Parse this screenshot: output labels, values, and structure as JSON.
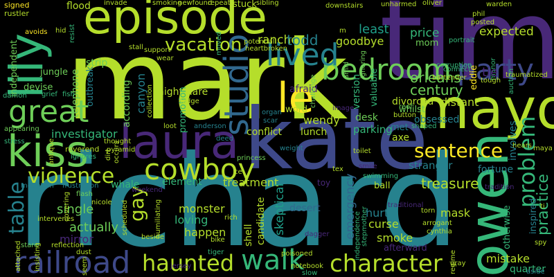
{
  "palette": [
    "#fde725",
    "#b5de2b",
    "#6ece58",
    "#35b779",
    "#1f9e89",
    "#26828e",
    "#31688e",
    "#3e4989",
    "#482878",
    "#440154"
  ],
  "words": [
    {
      "text": "mark",
      "c": "#b5de2b"
    },
    {
      "text": "tim",
      "c": "#482878"
    },
    {
      "text": "richard",
      "c": "#26828e"
    },
    {
      "text": "kate",
      "c": "#3e4989"
    },
    {
      "text": "episode",
      "c": "#b5de2b"
    },
    {
      "text": "mayor",
      "c": "#b5de2b"
    },
    {
      "text": "laura",
      "c": "#482878"
    },
    {
      "text": "owen",
      "c": "#35b779"
    },
    {
      "text": "lily",
      "c": "#35b779"
    },
    {
      "text": "kiss",
      "c": "#6ece58"
    },
    {
      "text": "great",
      "c": "#6ece58"
    },
    {
      "text": "cowboy",
      "c": "#b5de2b"
    },
    {
      "text": "studio",
      "c": "#31688e"
    },
    {
      "text": "railroad",
      "c": "#3e4989"
    },
    {
      "text": "bedroom",
      "c": "#6ece58"
    },
    {
      "text": "party",
      "c": "#3e4989"
    },
    {
      "text": "lived",
      "c": "#26828e"
    },
    {
      "text": "le",
      "c": "#fde725"
    },
    {
      "text": "walk",
      "c": "#35b779"
    },
    {
      "text": "haunted",
      "c": "#b5de2b"
    },
    {
      "text": "character",
      "c": "#b5de2b"
    },
    {
      "text": "violence",
      "c": "#b5de2b"
    },
    {
      "text": "table",
      "c": "#26828e"
    },
    {
      "text": "sentence",
      "c": "#fde725"
    },
    {
      "text": "problem",
      "c": "#35b779"
    },
    {
      "text": "vacation",
      "c": "#b5de2b"
    },
    {
      "text": "gay",
      "c": "#b5de2b"
    },
    {
      "text": "treasure",
      "c": "#b5de2b"
    },
    {
      "text": "practice",
      "c": "#35b779"
    },
    {
      "text": "mistake",
      "c": "#b5de2b"
    },
    {
      "text": "rancher",
      "c": "#b5de2b"
    },
    {
      "text": "least",
      "c": "#1f9e89"
    },
    {
      "text": "expected",
      "c": "#b5de2b"
    },
    {
      "text": "price",
      "c": "#35b779"
    },
    {
      "text": "todd",
      "c": "#26828e"
    },
    {
      "text": "goodbye",
      "c": "#b5de2b"
    },
    {
      "text": "orleans",
      "c": "#6ece58"
    },
    {
      "text": "century",
      "c": "#6ece58"
    },
    {
      "text": "mom",
      "c": "#6ece58"
    },
    {
      "text": "investigator",
      "c": "#35b779"
    },
    {
      "text": "wendy",
      "c": "#b5de2b"
    },
    {
      "text": "conflict",
      "c": "#b5de2b"
    },
    {
      "text": "lunch",
      "c": "#b5de2b"
    },
    {
      "text": "parking",
      "c": "#35b779"
    },
    {
      "text": "met",
      "c": "#26828e"
    },
    {
      "text": "obsessed",
      "c": "#26828e"
    },
    {
      "text": "axe",
      "c": "#b5de2b"
    },
    {
      "text": "stranger",
      "c": "#26828e"
    },
    {
      "text": "fortune",
      "c": "#26828e"
    },
    {
      "text": "element",
      "c": "#35b779"
    },
    {
      "text": "whale",
      "c": "#35b779"
    },
    {
      "text": "treatment",
      "c": "#b5de2b"
    },
    {
      "text": "ball",
      "c": "#b5de2b"
    },
    {
      "text": "single",
      "c": "#6ece58"
    },
    {
      "text": "actually",
      "c": "#6ece58"
    },
    {
      "text": "mirror",
      "c": "#482878"
    },
    {
      "text": "monster",
      "c": "#b5de2b"
    },
    {
      "text": "loving",
      "c": "#35b779"
    },
    {
      "text": "happen",
      "c": "#b5de2b"
    },
    {
      "text": "smoke",
      "c": "#b5de2b"
    },
    {
      "text": "hurt",
      "c": "#26828e"
    },
    {
      "text": "curse",
      "c": "#b5de2b"
    },
    {
      "text": "mask",
      "c": "#b5de2b"
    },
    {
      "text": "desert",
      "c": "#31688e"
    },
    {
      "text": "emergency",
      "c": "#31688e"
    },
    {
      "text": "skeptical",
      "c": "#1f9e89"
    },
    {
      "text": "candidate",
      "c": "#b5de2b"
    },
    {
      "text": "shell",
      "c": "#b5de2b"
    },
    {
      "text": "afterward",
      "c": "#482878"
    },
    {
      "text": "quarter",
      "c": "#35b779"
    },
    {
      "text": "inspired",
      "c": "#26828e"
    },
    {
      "text": "involves",
      "c": "#26828e"
    },
    {
      "text": "otherwise",
      "c": "#35b779"
    },
    {
      "text": "nightmare",
      "c": "#b5de2b"
    },
    {
      "text": "canyon",
      "c": "#26828e"
    },
    {
      "text": "according",
      "c": "#6ece58"
    },
    {
      "text": "strip",
      "c": "#6ece58"
    },
    {
      "text": "outbreak",
      "c": "#26828e"
    },
    {
      "text": "jungle",
      "c": "#6ece58"
    },
    {
      "text": "telephone",
      "c": "#6ece58"
    },
    {
      "text": "independent",
      "c": "#6ece58"
    },
    {
      "text": "devise",
      "c": "#6ece58"
    },
    {
      "text": "afraid",
      "c": "#482878"
    },
    {
      "text": "word",
      "c": "#b5de2b"
    },
    {
      "text": "desk",
      "c": "#6ece58"
    },
    {
      "text": "distant",
      "c": "#b5de2b"
    },
    {
      "text": "divorced",
      "c": "#b5de2b"
    },
    {
      "text": "whilst",
      "c": "#6ece58"
    },
    {
      "text": "valuable",
      "c": "#35b779"
    },
    {
      "text": "version",
      "c": "#35b779"
    },
    {
      "text": "promotion",
      "c": "#35b779"
    },
    {
      "text": "flood",
      "c": "#b5de2b"
    },
    {
      "text": "stuck",
      "c": "#b5de2b"
    },
    {
      "text": "signed",
      "c": "#fde725"
    },
    {
      "text": "rustler",
      "c": "#b5de2b"
    },
    {
      "text": "avoids",
      "c": "#fde725"
    },
    {
      "text": "invade",
      "c": "#b5de2b"
    },
    {
      "text": "smoking",
      "c": "#b5de2b"
    },
    {
      "text": "newfound",
      "c": "#b5de2b"
    },
    {
      "text": "repeat",
      "c": "#b5de2b"
    },
    {
      "text": "sibling",
      "c": "#b5de2b"
    },
    {
      "text": "downstairs",
      "c": "#b5de2b"
    },
    {
      "text": "unharmed",
      "c": "#b5de2b"
    },
    {
      "text": "oliver",
      "c": "#b5de2b"
    },
    {
      "text": "warden",
      "c": "#b5de2b"
    },
    {
      "text": "phil",
      "c": "#b5de2b"
    },
    {
      "text": "posted",
      "c": "#b5de2b"
    },
    {
      "text": "portrait",
      "c": "#35b779"
    },
    {
      "text": "corruption",
      "c": "#35b779"
    },
    {
      "text": "manor",
      "c": "#35b779"
    },
    {
      "text": "tough",
      "c": "#b5de2b"
    },
    {
      "text": "auction",
      "c": "#35b779"
    },
    {
      "text": "traumatized",
      "c": "#b5de2b"
    },
    {
      "text": "heartbroken",
      "c": "#b5de2b"
    },
    {
      "text": "potential",
      "c": "#b5de2b"
    },
    {
      "text": "moved",
      "c": "#35b779"
    },
    {
      "text": "support",
      "c": "#b5de2b"
    },
    {
      "text": "wear",
      "c": "#b5de2b"
    },
    {
      "text": "stall",
      "c": "#b5de2b"
    },
    {
      "text": "resist",
      "c": "#35b779"
    },
    {
      "text": "hid",
      "c": "#b5de2b"
    },
    {
      "text": "damon",
      "c": "#35b779"
    },
    {
      "text": "grief",
      "c": "#35b779"
    },
    {
      "text": "fish",
      "c": "#35b779"
    },
    {
      "text": "lodge",
      "c": "#b5de2b"
    },
    {
      "text": "organ",
      "c": "#26828e"
    },
    {
      "text": "scar",
      "c": "#26828e"
    },
    {
      "text": "loot",
      "c": "#b5de2b"
    },
    {
      "text": "anderson",
      "c": "#26828e"
    },
    {
      "text": "deed",
      "c": "#26828e"
    },
    {
      "text": "image",
      "c": "#482878"
    },
    {
      "text": "challenge",
      "c": "#6ece58"
    },
    {
      "text": "amid",
      "c": "#6ece58"
    },
    {
      "text": "ignoring",
      "c": "#6ece58"
    },
    {
      "text": "connect",
      "c": "#35b779"
    },
    {
      "text": "bartender",
      "c": "#b5de2b"
    },
    {
      "text": "eddie",
      "c": "#fde725"
    },
    {
      "text": "tie",
      "c": "#482878"
    },
    {
      "text": "reef",
      "c": "#6ece58"
    },
    {
      "text": "button",
      "c": "#b5de2b"
    },
    {
      "text": "shaped",
      "c": "#35b779"
    },
    {
      "text": "appearing",
      "c": "#6ece58"
    },
    {
      "text": "stress",
      "c": "#35b779"
    },
    {
      "text": "reverend",
      "c": "#b5de2b"
    },
    {
      "text": "ignores",
      "c": "#35b779"
    },
    {
      "text": "thought",
      "c": "#b5de2b"
    },
    {
      "text": "pyramid",
      "c": "#b5de2b"
    },
    {
      "text": "princess",
      "c": "#6ece58"
    },
    {
      "text": "weight",
      "c": "#26828e"
    },
    {
      "text": "toilet",
      "c": "#b5de2b"
    },
    {
      "text": "tex",
      "c": "#b5de2b"
    },
    {
      "text": "smile",
      "c": "#482878"
    },
    {
      "text": "swimming",
      "c": "#35b779"
    },
    {
      "text": "toy",
      "c": "#482878"
    },
    {
      "text": "hears",
      "c": "#b5de2b"
    },
    {
      "text": "maya",
      "c": "#b5de2b"
    },
    {
      "text": "tradition",
      "c": "#482878"
    },
    {
      "text": "aside",
      "c": "#26828e"
    },
    {
      "text": "mountain",
      "c": "#26828e"
    },
    {
      "text": "frustration",
      "c": "#26828e"
    },
    {
      "text": "flash",
      "c": "#6ece58"
    },
    {
      "text": "weekend",
      "c": "#482878"
    },
    {
      "text": "intervenes",
      "c": "#b5de2b"
    },
    {
      "text": "reflection",
      "c": "#b5de2b"
    },
    {
      "text": "stare",
      "c": "#6ece58"
    },
    {
      "text": "dust",
      "c": "#b5de2b"
    },
    {
      "text": "seem",
      "c": "#b5de2b"
    },
    {
      "text": "jersey",
      "c": "#482878"
    },
    {
      "text": "beside",
      "c": "#b5de2b"
    },
    {
      "text": "tiger",
      "c": "#35b779"
    },
    {
      "text": "poisoned",
      "c": "#b5de2b"
    },
    {
      "text": "notebook",
      "c": "#b5de2b"
    },
    {
      "text": "slow",
      "c": "#35b779"
    },
    {
      "text": "dagger",
      "c": "#482878"
    },
    {
      "text": "independence",
      "c": "#35b779"
    },
    {
      "text": "stepmother",
      "c": "#35b779"
    },
    {
      "text": "traditional",
      "c": "#482878"
    },
    {
      "text": "torn",
      "c": "#b5de2b"
    },
    {
      "text": "arrogant",
      "c": "#b5de2b"
    },
    {
      "text": "cynthia",
      "c": "#b5de2b"
    },
    {
      "text": "regime",
      "c": "#b5de2b"
    },
    {
      "text": "gray",
      "c": "#b5de2b"
    },
    {
      "text": "attached",
      "c": "#b5de2b"
    },
    {
      "text": "covering",
      "c": "#b5de2b"
    },
    {
      "text": "scheduled",
      "c": "#b5de2b"
    },
    {
      "text": "humiliating",
      "c": "#b5de2b"
    },
    {
      "text": "antique",
      "c": "#b5de2b"
    },
    {
      "text": "occurs",
      "c": "#b5de2b"
    },
    {
      "text": "dirt",
      "c": "#b5de2b"
    },
    {
      "text": "bike",
      "c": "#b5de2b"
    },
    {
      "text": "collection",
      "c": "#b5de2b"
    },
    {
      "text": "spy",
      "c": "#b5de2b"
    },
    {
      "text": "ti",
      "c": "#b5de2b"
    },
    {
      "text": "m",
      "c": "#b5de2b"
    },
    {
      "text": "nicole",
      "c": "#b5de2b"
    },
    {
      "text": "insisting",
      "c": "#b5de2b"
    },
    {
      "text": "rich",
      "c": "#b5de2b"
    },
    {
      "text": "ce",
      "c": "#b5de2b"
    }
  ]
}
